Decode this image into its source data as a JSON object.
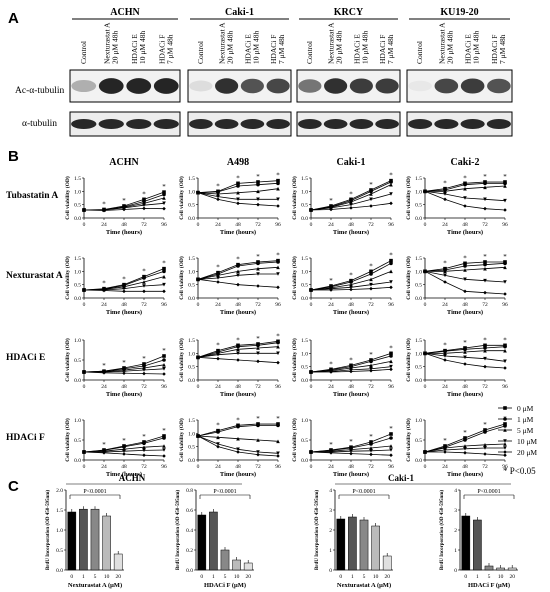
{
  "panel_labels": {
    "a": "A",
    "b": "B",
    "c": "C"
  },
  "panel_a": {
    "cell_lines": [
      "ACHN",
      "Caki-1",
      "KRCY",
      "KU19-20"
    ],
    "lane_labels": [
      "Control",
      "Nexturastat A 20 μM 48h",
      "HDACi E 10 μM 48h",
      "HDACi F 7 μM 48h"
    ],
    "row_labels": [
      "Ac-α-tubulin",
      "α-tubulin"
    ]
  },
  "panel_b": {
    "cell_lines": [
      "ACHN",
      "A498",
      "Caki-1",
      "Caki-2"
    ],
    "drugs": [
      "Tubastatin A",
      "Nexturastat A",
      "HDACi E",
      "HDACi F"
    ],
    "xlabel": "Time (hours)",
    "ylabel": "Cell viability (OD)",
    "xticks": [
      "0",
      "24",
      "48",
      "72",
      "96"
    ],
    "yticks": [
      "0.0",
      "0.5",
      "1.0",
      "1.5"
    ],
    "legend": [
      "0 μM",
      "1 μM",
      "5 μM",
      "10 μM",
      "20 μM"
    ],
    "pval": "* P<0.05"
  },
  "chart_data": [
    {
      "type": "line",
      "title": "ACHN",
      "ylabel": "Cell viability (OD)",
      "xlabel": "Time (hours)",
      "x": [
        0,
        24,
        48,
        72,
        96
      ],
      "ylim": [
        0,
        1.5
      ],
      "series": [
        {
          "name": "0 μM",
          "values": [
            0.3,
            0.32,
            0.45,
            0.7,
            0.97
          ]
        },
        {
          "name": "1 μM",
          "values": [
            0.3,
            0.3,
            0.42,
            0.62,
            0.88
          ]
        },
        {
          "name": "5 μM",
          "values": [
            0.3,
            0.3,
            0.4,
            0.55,
            0.75
          ]
        },
        {
          "name": "10 μM",
          "values": [
            0.3,
            0.3,
            0.38,
            0.48,
            0.55
          ]
        },
        {
          "name": "20 μM",
          "values": [
            0.3,
            0.28,
            0.32,
            0.36,
            0.35
          ]
        }
      ]
    },
    {
      "type": "line",
      "title": "A498",
      "ylabel": "Cell viability (OD)",
      "xlabel": "Time (hours)",
      "x": [
        0,
        24,
        48,
        72,
        96
      ],
      "ylim": [
        0,
        1.5
      ],
      "series": [
        {
          "name": "0 μM",
          "values": [
            0.95,
            1.0,
            1.3,
            1.35,
            1.4
          ]
        },
        {
          "name": "1 μM",
          "values": [
            0.95,
            0.98,
            1.2,
            1.25,
            1.3
          ]
        },
        {
          "name": "5 μM",
          "values": [
            0.95,
            0.9,
            0.95,
            1.0,
            1.1
          ]
        },
        {
          "name": "10 μM",
          "values": [
            0.95,
            0.8,
            0.7,
            0.7,
            0.7
          ]
        },
        {
          "name": "20 μM",
          "values": [
            0.95,
            0.7,
            0.55,
            0.5,
            0.45
          ]
        }
      ]
    },
    {
      "type": "line",
      "title": "Caki-1",
      "ylabel": "Cell viability (OD)",
      "xlabel": "Time (hours)",
      "x": [
        0,
        24,
        48,
        72,
        96
      ],
      "ylim": [
        0,
        1.5
      ],
      "series": [
        {
          "name": "0 μM",
          "values": [
            0.3,
            0.45,
            0.7,
            1.05,
            1.4
          ]
        },
        {
          "name": "1 μM",
          "values": [
            0.3,
            0.42,
            0.65,
            1.0,
            1.35
          ]
        },
        {
          "name": "5 μM",
          "values": [
            0.3,
            0.4,
            0.6,
            0.9,
            1.25
          ]
        },
        {
          "name": "10 μM",
          "values": [
            0.3,
            0.38,
            0.5,
            0.7,
            0.9
          ]
        },
        {
          "name": "20 μM",
          "values": [
            0.3,
            0.32,
            0.38,
            0.45,
            0.55
          ]
        }
      ]
    },
    {
      "type": "line",
      "title": "Caki-2",
      "ylabel": "Cell viability (OD)",
      "xlabel": "Time (hours)",
      "x": [
        0,
        24,
        48,
        72,
        96
      ],
      "ylim": [
        0,
        1.5
      ],
      "series": [
        {
          "name": "0 μM",
          "values": [
            1.0,
            1.1,
            1.3,
            1.35,
            1.35
          ]
        },
        {
          "name": "1 μM",
          "values": [
            1.0,
            1.05,
            1.25,
            1.3,
            1.3
          ]
        },
        {
          "name": "5 μM",
          "values": [
            1.0,
            1.0,
            1.1,
            1.15,
            1.2
          ]
        },
        {
          "name": "10 μM",
          "values": [
            1.0,
            0.9,
            0.75,
            0.7,
            0.65
          ]
        },
        {
          "name": "20 μM",
          "values": [
            1.0,
            0.7,
            0.45,
            0.35,
            0.3
          ]
        }
      ]
    },
    {
      "type": "line",
      "title": "",
      "x": [
        0,
        24,
        48,
        72,
        96
      ],
      "ylim": [
        0,
        1.5
      ],
      "series": [
        {
          "name": "0 μM",
          "values": [
            0.3,
            0.35,
            0.5,
            0.8,
            1.1
          ]
        },
        {
          "name": "1 μM",
          "values": [
            0.3,
            0.33,
            0.47,
            0.75,
            1.0
          ]
        },
        {
          "name": "5 μM",
          "values": [
            0.3,
            0.32,
            0.42,
            0.6,
            0.8
          ]
        },
        {
          "name": "10 μM",
          "values": [
            0.3,
            0.3,
            0.35,
            0.45,
            0.5
          ]
        },
        {
          "name": "20 μM",
          "values": [
            0.3,
            0.28,
            0.25,
            0.25,
            0.25
          ]
        }
      ]
    },
    {
      "type": "line",
      "title": "",
      "x": [
        0,
        24,
        48,
        72,
        96
      ],
      "ylim": [
        0,
        1.5
      ],
      "series": [
        {
          "name": "0 μM",
          "values": [
            0.7,
            0.95,
            1.25,
            1.35,
            1.4
          ]
        },
        {
          "name": "1 μM",
          "values": [
            0.7,
            0.9,
            1.2,
            1.3,
            1.35
          ]
        },
        {
          "name": "5 μM",
          "values": [
            0.7,
            0.85,
            1.0,
            1.1,
            1.15
          ]
        },
        {
          "name": "10 μM",
          "values": [
            0.7,
            0.75,
            0.85,
            0.9,
            0.9
          ]
        },
        {
          "name": "20 μM",
          "values": [
            0.7,
            0.6,
            0.5,
            0.45,
            0.4
          ]
        }
      ]
    },
    {
      "type": "line",
      "title": "",
      "x": [
        0,
        24,
        48,
        72,
        96
      ],
      "ylim": [
        0,
        1.5
      ],
      "series": [
        {
          "name": "0 μM",
          "values": [
            0.3,
            0.45,
            0.65,
            1.0,
            1.4
          ]
        },
        {
          "name": "1 μM",
          "values": [
            0.3,
            0.42,
            0.6,
            0.9,
            1.3
          ]
        },
        {
          "name": "5 μM",
          "values": [
            0.3,
            0.38,
            0.5,
            0.7,
            1.0
          ]
        },
        {
          "name": "10 μM",
          "values": [
            0.3,
            0.35,
            0.4,
            0.5,
            0.6
          ]
        },
        {
          "name": "20 μM",
          "values": [
            0.3,
            0.3,
            0.32,
            0.35,
            0.4
          ]
        }
      ]
    },
    {
      "type": "line",
      "title": "",
      "x": [
        0,
        24,
        48,
        72,
        96
      ],
      "ylim": [
        0,
        1.5
      ],
      "series": [
        {
          "name": "0 μM",
          "values": [
            1.0,
            1.1,
            1.3,
            1.35,
            1.35
          ]
        },
        {
          "name": "1 μM",
          "values": [
            1.0,
            1.05,
            1.2,
            1.25,
            1.3
          ]
        },
        {
          "name": "5 μM",
          "values": [
            1.0,
            1.0,
            1.05,
            1.1,
            1.15
          ]
        },
        {
          "name": "10 μM",
          "values": [
            1.0,
            0.85,
            0.7,
            0.65,
            0.6
          ]
        },
        {
          "name": "20 μM",
          "values": [
            1.0,
            0.6,
            0.25,
            0.2,
            0.15
          ]
        }
      ]
    },
    {
      "type": "line",
      "title": "",
      "x": [
        0,
        24,
        48,
        72,
        96
      ],
      "ylim": [
        0,
        1.0
      ],
      "series": [
        {
          "name": "0 μM",
          "values": [
            0.2,
            0.22,
            0.3,
            0.4,
            0.6
          ]
        },
        {
          "name": "1 μM",
          "values": [
            0.2,
            0.22,
            0.28,
            0.35,
            0.5
          ]
        },
        {
          "name": "5 μM",
          "values": [
            0.2,
            0.21,
            0.25,
            0.3,
            0.38
          ]
        },
        {
          "name": "10 μM",
          "values": [
            0.2,
            0.2,
            0.22,
            0.25,
            0.28
          ]
        },
        {
          "name": "20 μM",
          "values": [
            0.2,
            0.18,
            0.17,
            0.16,
            0.15
          ]
        }
      ]
    },
    {
      "type": "line",
      "title": "",
      "x": [
        0,
        24,
        48,
        72,
        96
      ],
      "ylim": [
        0,
        1.5
      ],
      "series": [
        {
          "name": "0 μM",
          "values": [
            0.85,
            1.1,
            1.3,
            1.35,
            1.45
          ]
        },
        {
          "name": "1 μM",
          "values": [
            0.85,
            1.05,
            1.25,
            1.3,
            1.4
          ]
        },
        {
          "name": "5 μM",
          "values": [
            0.85,
            1.0,
            1.15,
            1.2,
            1.25
          ]
        },
        {
          "name": "10 μM",
          "values": [
            0.85,
            0.95,
            1.0,
            1.0,
            1.0
          ]
        },
        {
          "name": "20 μM",
          "values": [
            0.85,
            0.8,
            0.75,
            0.7,
            0.65
          ]
        }
      ]
    },
    {
      "type": "line",
      "title": "",
      "x": [
        0,
        24,
        48,
        72,
        96
      ],
      "ylim": [
        0,
        1.5
      ],
      "series": [
        {
          "name": "0 μM",
          "values": [
            0.3,
            0.4,
            0.55,
            0.75,
            1.0
          ]
        },
        {
          "name": "1 μM",
          "values": [
            0.3,
            0.38,
            0.5,
            0.7,
            0.9
          ]
        },
        {
          "name": "5 μM",
          "values": [
            0.3,
            0.35,
            0.45,
            0.55,
            0.7
          ]
        },
        {
          "name": "10 μM",
          "values": [
            0.3,
            0.32,
            0.38,
            0.42,
            0.5
          ]
        },
        {
          "name": "20 μM",
          "values": [
            0.3,
            0.3,
            0.32,
            0.35,
            0.4
          ]
        }
      ]
    },
    {
      "type": "line",
      "title": "",
      "x": [
        0,
        24,
        48,
        72,
        96
      ],
      "ylim": [
        0,
        1.5
      ],
      "series": [
        {
          "name": "0 μM",
          "values": [
            1.0,
            1.1,
            1.2,
            1.3,
            1.3
          ]
        },
        {
          "name": "1 μM",
          "values": [
            1.0,
            1.08,
            1.15,
            1.2,
            1.25
          ]
        },
        {
          "name": "5 μM",
          "values": [
            1.0,
            1.0,
            1.05,
            1.1,
            1.1
          ]
        },
        {
          "name": "10 μM",
          "values": [
            1.0,
            0.9,
            0.85,
            0.8,
            0.7
          ]
        },
        {
          "name": "20 μM",
          "values": [
            1.0,
            0.75,
            0.6,
            0.5,
            0.45
          ]
        }
      ]
    },
    {
      "type": "line",
      "title": "",
      "x": [
        0,
        24,
        48,
        72,
        96
      ],
      "ylim": [
        0,
        1.0
      ],
      "series": [
        {
          "name": "0 μM",
          "values": [
            0.2,
            0.25,
            0.35,
            0.45,
            0.6
          ]
        },
        {
          "name": "1 μM",
          "values": [
            0.2,
            0.24,
            0.33,
            0.42,
            0.55
          ]
        },
        {
          "name": "5 μM",
          "values": [
            0.2,
            0.22,
            0.27,
            0.32,
            0.35
          ]
        },
        {
          "name": "10 μM",
          "values": [
            0.2,
            0.2,
            0.22,
            0.24,
            0.25
          ]
        },
        {
          "name": "20 μM",
          "values": [
            0.2,
            0.18,
            0.15,
            0.12,
            0.1
          ]
        }
      ]
    },
    {
      "type": "line",
      "title": "",
      "x": [
        0,
        24,
        48,
        72,
        96
      ],
      "ylim": [
        0,
        1.5
      ],
      "series": [
        {
          "name": "0 μM",
          "values": [
            0.9,
            1.1,
            1.3,
            1.35,
            1.35
          ]
        },
        {
          "name": "1 μM",
          "values": [
            0.9,
            1.05,
            1.25,
            1.3,
            1.3
          ]
        },
        {
          "name": "5 μM",
          "values": [
            0.9,
            0.85,
            0.8,
            0.75,
            0.7
          ]
        },
        {
          "name": "10 μM",
          "values": [
            0.9,
            0.6,
            0.4,
            0.3,
            0.25
          ]
        },
        {
          "name": "20 μM",
          "values": [
            0.9,
            0.5,
            0.3,
            0.2,
            0.15
          ]
        }
      ]
    },
    {
      "type": "line",
      "title": "",
      "x": [
        0,
        24,
        48,
        72,
        96
      ],
      "ylim": [
        0,
        1.0
      ],
      "series": [
        {
          "name": "0 μM",
          "values": [
            0.2,
            0.25,
            0.32,
            0.45,
            0.65
          ]
        },
        {
          "name": "1 μM",
          "values": [
            0.2,
            0.24,
            0.3,
            0.4,
            0.55
          ]
        },
        {
          "name": "5 μM",
          "values": [
            0.2,
            0.22,
            0.26,
            0.3,
            0.35
          ]
        },
        {
          "name": "10 μM",
          "values": [
            0.2,
            0.2,
            0.22,
            0.23,
            0.25
          ]
        },
        {
          "name": "20 μM",
          "values": [
            0.2,
            0.18,
            0.16,
            0.14,
            0.12
          ]
        }
      ]
    },
    {
      "type": "line",
      "title": "",
      "x": [
        0,
        24,
        48,
        72,
        96
      ],
      "ylim": [
        0,
        1.0
      ],
      "series": [
        {
          "name": "0 μM",
          "values": [
            0.2,
            0.35,
            0.55,
            0.75,
            0.9
          ]
        },
        {
          "name": "1 μM",
          "values": [
            0.2,
            0.32,
            0.5,
            0.7,
            0.85
          ]
        },
        {
          "name": "5 μM",
          "values": [
            0.2,
            0.3,
            0.35,
            0.38,
            0.4
          ]
        },
        {
          "name": "10 μM",
          "values": [
            0.2,
            0.25,
            0.28,
            0.3,
            0.3
          ]
        },
        {
          "name": "20 μM",
          "values": [
            0.2,
            0.2,
            0.18,
            0.15,
            0.12
          ]
        }
      ]
    },
    {
      "type": "bar",
      "title": "ACHN",
      "xlabel": "Nexturastat A (μM)",
      "ylabel": "BrdU Incorporation (OD 450-595nm)",
      "categories": [
        "0",
        "1",
        "5",
        "10",
        "20"
      ],
      "values": [
        1.45,
        1.52,
        1.52,
        1.35,
        0.4
      ],
      "ylim": [
        0,
        2.0
      ],
      "yticks": [
        "0.0",
        "0.5",
        "1.0",
        "1.5",
        "2.0"
      ],
      "pval": "P<0.0001"
    },
    {
      "type": "bar",
      "title": "",
      "xlabel": "HDACi F (μM)",
      "ylabel": "BrdU Incorporation (OD 450-595nm)",
      "categories": [
        "0",
        "1",
        "5",
        "10",
        "20"
      ],
      "values": [
        0.55,
        0.58,
        0.2,
        0.1,
        0.07
      ],
      "ylim": [
        0,
        0.8
      ],
      "yticks": [
        "0.0",
        "0.2",
        "0.4",
        "0.6",
        "0.8"
      ],
      "pval": "P<0.0001"
    },
    {
      "type": "bar",
      "title": "Caki-1",
      "xlabel": "Nexturastat A (μM)",
      "ylabel": "BrdU Incorporation (OD 450-595nm)",
      "categories": [
        "0",
        "1",
        "5",
        "10",
        "20"
      ],
      "values": [
        2.55,
        2.65,
        2.5,
        2.2,
        0.7
      ],
      "ylim": [
        0,
        4
      ],
      "yticks": [
        "0",
        "1",
        "2",
        "3",
        "4"
      ],
      "pval": "P<0.0001"
    },
    {
      "type": "bar",
      "title": "",
      "xlabel": "HDACi F (μM)",
      "ylabel": "BrdU Incorporation (OD 450-595nm)",
      "categories": [
        "0",
        "1",
        "5",
        "10",
        "20"
      ],
      "values": [
        2.7,
        2.5,
        0.2,
        0.1,
        0.1
      ],
      "ylim": [
        0,
        4
      ],
      "yticks": [
        "0",
        "1",
        "2",
        "3",
        "4"
      ],
      "pval": "P<0.0001"
    }
  ]
}
